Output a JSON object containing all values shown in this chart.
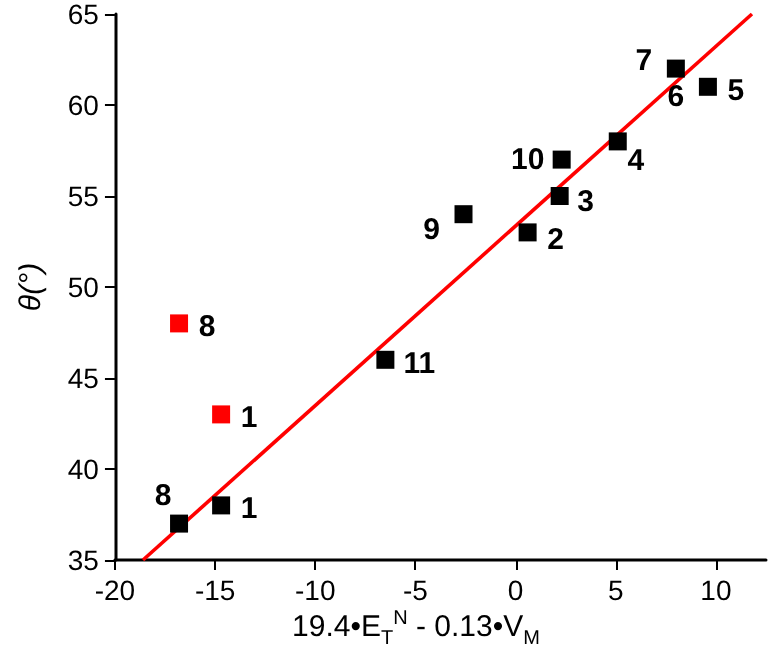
{
  "chart_data": {
    "type": "scatter",
    "xlabel": "19.4•E$_{T}$$^{N}$ - 0.13•V$_{M}$",
    "ylabel": "θ(°)",
    "xlim": [
      -20,
      12.5
    ],
    "xticks": [
      -20,
      -15,
      -10,
      -5,
      0,
      5,
      10
    ],
    "ylim": [
      35,
      65
    ],
    "yticks": [
      35,
      40,
      45,
      50,
      55,
      60,
      65
    ],
    "grid": false,
    "marker": "square",
    "series": [
      {
        "color": "#000000",
        "x": [
          -16.8,
          -14.7,
          -6.5,
          -2.6,
          0.6,
          2.2,
          2.3,
          5.1,
          8.0,
          9.6
        ],
        "values": [
          37,
          38,
          46,
          54,
          53,
          55,
          57,
          58,
          62,
          61
        ]
      },
      {
        "color": "#ff0000",
        "x": [
          -16.8,
          -14.7
        ],
        "values": [
          48,
          43
        ]
      },
      {
        "type": "line",
        "color": "#ff0000",
        "x": [
          -18.6,
          11.8
        ],
        "values": [
          35,
          65
        ],
        "marker": "none"
      }
    ],
    "annotations": [
      {
        "text": "8",
        "x": -16.8,
        "y": 37
      },
      {
        "text": "1",
        "x": -14.7,
        "y": 38
      },
      {
        "text": "11",
        "x": -6.5,
        "y": 46
      },
      {
        "text": "9",
        "x": -2.6,
        "y": 54
      },
      {
        "text": "2",
        "x": 0.6,
        "y": 53
      },
      {
        "text": "3",
        "x": 2.2,
        "y": 55
      },
      {
        "text": "10",
        "x": 2.3,
        "y": 57
      },
      {
        "text": "4",
        "x": 5.1,
        "y": 58
      },
      {
        "text": "7",
        "x": 8.0,
        "y": 62
      },
      {
        "text": "6",
        "x": 8.0,
        "y": 62
      },
      {
        "text": "5",
        "x": 9.6,
        "y": 61
      },
      {
        "text": "8",
        "x": -16.8,
        "y": 48
      },
      {
        "text": "1",
        "x": -14.7,
        "y": 43
      }
    ]
  }
}
